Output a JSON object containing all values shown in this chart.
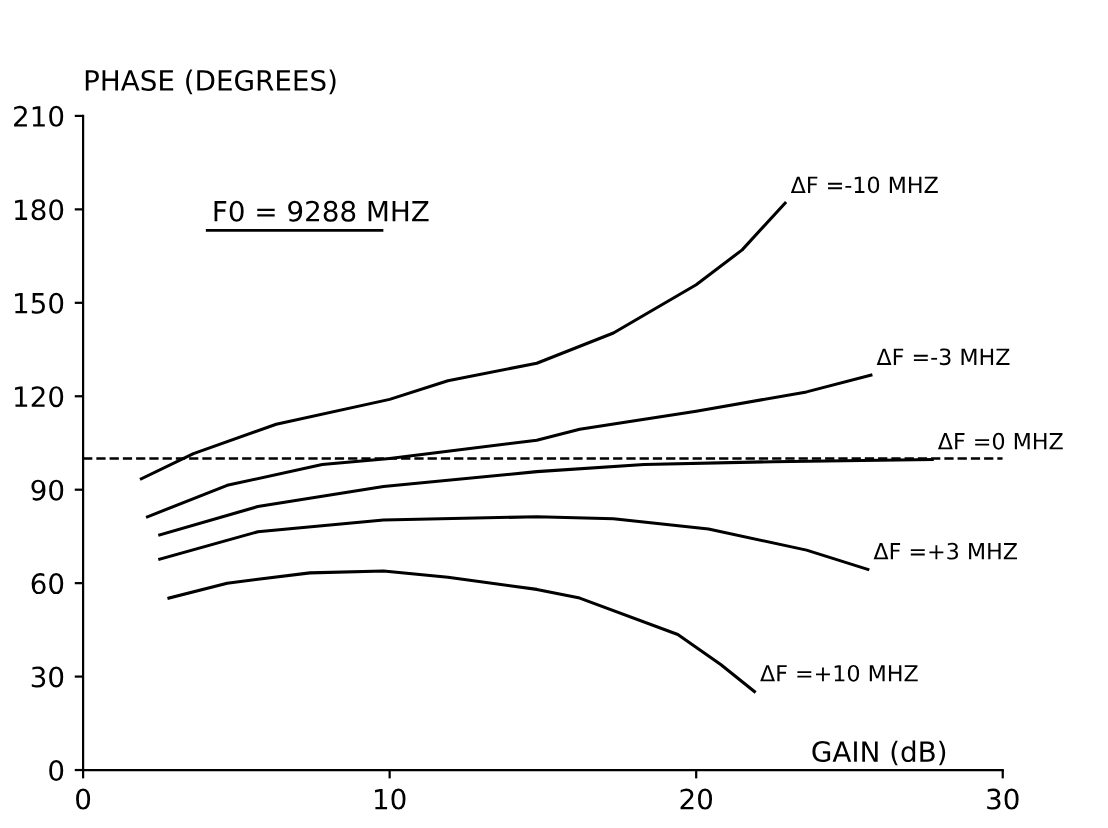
{
  "chart_data": {
    "type": "line",
    "xlabel": "GAIN (dB)",
    "ylabel": "PHASE (DEGREES)",
    "xlim": [
      0,
      30
    ],
    "ylim": [
      0,
      210
    ],
    "xticks": [
      0,
      10,
      20,
      30
    ],
    "yticks": [
      0,
      30,
      60,
      90,
      120,
      150,
      180,
      210
    ],
    "grid": false,
    "legend": false,
    "marker": "none",
    "line_style": "solid",
    "annotations": [
      "F0 = 9288 MHZ"
    ],
    "ref_lines": [
      {
        "axis": "y",
        "value": 100,
        "label": null,
        "line_style": "dashed",
        "color": "#000000"
      }
    ],
    "series": [
      {
        "name": "ΔF =-10 MHZ",
        "color": "#000000",
        "x": [
          1.9,
          3.6,
          6.3,
          10,
          11.9,
          14.8,
          17.3,
          20,
          21.5,
          22.9
        ],
        "values": [
          93.5,
          101.6,
          111,
          119,
          125,
          130.6,
          140.3,
          155.8,
          167,
          182
        ]
      },
      {
        "name": "ΔF =-3 MHZ",
        "color": "#000000",
        "x": [
          2.1,
          4.7,
          7.8,
          10,
          14.8,
          16.2,
          20,
          23.6,
          25.7
        ],
        "values": [
          81.3,
          91.4,
          98.1,
          100,
          105.9,
          109.4,
          115.2,
          121.4,
          126.8
        ]
      },
      {
        "name": "ΔF =0 MHZ",
        "color": "#000000",
        "x": [
          2.5,
          5.7,
          9.8,
          14.8,
          18.3,
          22.5,
          27.7
        ],
        "values": [
          75.5,
          84.6,
          91,
          95.8,
          98.1,
          99,
          99.7
        ]
      },
      {
        "name": "ΔF =+3 MHZ",
        "color": "#000000",
        "x": [
          2.5,
          5.7,
          9.8,
          14.8,
          17.3,
          20.4,
          23.6,
          25.6
        ],
        "values": [
          67.7,
          76.5,
          80.3,
          81.3,
          80.7,
          77.4,
          70.6,
          64.4
        ]
      },
      {
        "name": "ΔF =+10 MHZ",
        "color": "#000000",
        "x": [
          2.8,
          4.7,
          7.4,
          9.8,
          11.9,
          14.8,
          16.2,
          19.4,
          20.8,
          21.9
        ],
        "values": [
          55.2,
          60,
          63.3,
          63.9,
          61.9,
          58,
          55.2,
          43.5,
          33.9,
          25.2
        ]
      }
    ]
  }
}
